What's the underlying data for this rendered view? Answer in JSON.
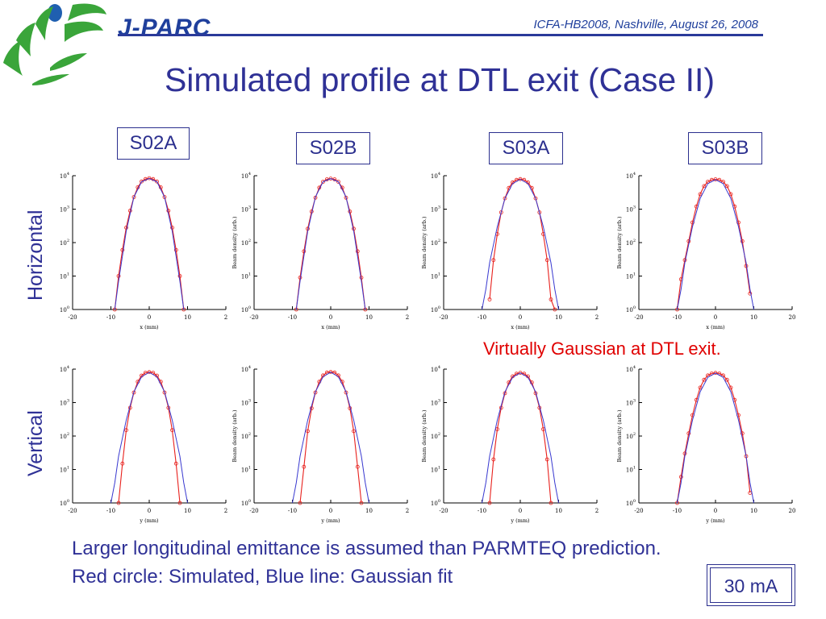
{
  "header": {
    "brand": "J-PARC",
    "conference": "ICFA-HB2008, Nashville, August 26, 2008"
  },
  "title": "Simulated profile at DTL exit (Case II)",
  "columns": [
    "S02A",
    "S02B",
    "S03A",
    "S03B"
  ],
  "rows": [
    "Horizontal",
    "Vertical"
  ],
  "annotation": "Virtually Gaussian at DTL exit.",
  "notes": {
    "line1": "Larger longitudinal emittance is assumed than PARMTEQ prediction.",
    "line2": "Red circle: Simulated, Blue line: Gaussian fit"
  },
  "current_label": "30 mA",
  "colors": {
    "title": "#2f3196",
    "simulated": "#e8201c",
    "gaussian_fit": "#3a3ad0",
    "annotation": "#e00000",
    "logo_green": "#3aa53a",
    "logo_blue": "#1f5fb0"
  },
  "chart_data": [
    {
      "type": "line",
      "row": "Horizontal",
      "column": "S02A",
      "xlabel": "x (mm)",
      "ylabel": "",
      "log_y": true,
      "xticks": [
        "-20",
        "-10",
        "0",
        "10",
        "2"
      ],
      "yticks": [
        "10^0",
        "10^1",
        "10^2",
        "10^3",
        "10^4"
      ],
      "xlim": [
        -20,
        20
      ],
      "ylim": [
        1,
        10000
      ],
      "series": [
        {
          "name": "Simulated",
          "marker": "circle",
          "x": [
            -9,
            -8,
            -7,
            -6,
            -5,
            -4,
            -3,
            -2,
            -1,
            0,
            1,
            2,
            3,
            4,
            5,
            6,
            7,
            8,
            9
          ],
          "y": [
            1,
            10,
            60,
            280,
            900,
            2300,
            4500,
            6700,
            7900,
            8400,
            7900,
            6700,
            4500,
            2300,
            900,
            280,
            60,
            10,
            1
          ]
        },
        {
          "name": "Gaussian fit",
          "x": [
            -9,
            -8,
            -6,
            -4,
            -2,
            0,
            2,
            4,
            6,
            8,
            9
          ],
          "y": [
            1,
            7,
            220,
            2300,
            6600,
            8300,
            6600,
            2300,
            220,
            7,
            1
          ]
        }
      ]
    },
    {
      "type": "line",
      "row": "Horizontal",
      "column": "S02B",
      "xlabel": "x (mm)",
      "ylabel": "Beam density (arb.)",
      "log_y": true,
      "xticks": [
        "-20",
        "-10",
        "0",
        "10",
        "2"
      ],
      "yticks": [
        "10^0",
        "10^1",
        "10^2",
        "10^3",
        "10^4"
      ],
      "xlim": [
        -20,
        20
      ],
      "ylim": [
        1,
        10000
      ],
      "series": [
        {
          "name": "Simulated",
          "marker": "circle",
          "x": [
            -9,
            -8,
            -7,
            -6,
            -5,
            -4,
            -3,
            -2,
            -1,
            0,
            1,
            2,
            3,
            4,
            5,
            6,
            7,
            8,
            9
          ],
          "y": [
            1,
            9,
            55,
            260,
            850,
            2200,
            4400,
            6600,
            7800,
            8200,
            7800,
            6600,
            4400,
            2200,
            850,
            260,
            55,
            9,
            1
          ]
        },
        {
          "name": "Gaussian fit",
          "x": [
            -9,
            -8,
            -6,
            -4,
            -2,
            0,
            2,
            4,
            6,
            8,
            9
          ],
          "y": [
            1,
            7,
            220,
            2300,
            6600,
            8200,
            6600,
            2300,
            220,
            7,
            1
          ]
        }
      ]
    },
    {
      "type": "line",
      "row": "Horizontal",
      "column": "S03A",
      "xlabel": "x (mm)",
      "ylabel": "Beam density (arb.)",
      "log_y": true,
      "xticks": [
        "-20",
        "-10",
        "0",
        "10",
        "2"
      ],
      "yticks": [
        "10^0",
        "10^1",
        "10^2",
        "10^3",
        "10^4"
      ],
      "xlim": [
        -20,
        20
      ],
      "ylim": [
        1,
        10000
      ],
      "series": [
        {
          "name": "Simulated",
          "marker": "circle",
          "x": [
            -8,
            -7,
            -6,
            -5,
            -4,
            -3,
            -2,
            -1,
            0,
            1,
            2,
            3,
            4,
            5,
            6,
            7,
            8,
            9
          ],
          "y": [
            2,
            30,
            180,
            800,
            2100,
            4300,
            6300,
            7500,
            7900,
            7500,
            6300,
            4300,
            2100,
            800,
            180,
            30,
            2,
            1
          ]
        },
        {
          "name": "Gaussian fit",
          "x": [
            -10,
            -9,
            -8,
            -6,
            -4,
            -2,
            0,
            2,
            4,
            6,
            8,
            9,
            10
          ],
          "y": [
            1,
            4,
            25,
            300,
            2100,
            5800,
            7800,
            5800,
            2100,
            300,
            25,
            4,
            1
          ]
        }
      ]
    },
    {
      "type": "line",
      "row": "Horizontal",
      "column": "S03B",
      "xlabel": "x (mm)",
      "ylabel": "Beam density (arb.)",
      "log_y": true,
      "xticks": [
        "-20",
        "-10",
        "0",
        "10",
        "20"
      ],
      "yticks": [
        "10^0",
        "10^1",
        "10^2",
        "10^3",
        "10^4"
      ],
      "xlim": [
        -20,
        20
      ],
      "ylim": [
        1,
        10000
      ],
      "series": [
        {
          "name": "Simulated",
          "marker": "circle",
          "x": [
            -10,
            -9,
            -8,
            -7,
            -6,
            -5,
            -4,
            -3,
            -2,
            -1,
            0,
            1,
            2,
            3,
            4,
            5,
            6,
            7,
            8,
            9
          ],
          "y": [
            1,
            8,
            30,
            110,
            400,
            1200,
            2800,
            4900,
            6600,
            7500,
            7800,
            7500,
            6600,
            4900,
            2800,
            1200,
            400,
            110,
            20,
            3
          ]
        },
        {
          "name": "Gaussian fit",
          "x": [
            -10,
            -9,
            -8,
            -6,
            -4,
            -2,
            0,
            2,
            4,
            6,
            8,
            9,
            10
          ],
          "y": [
            1,
            4,
            25,
            300,
            2100,
            5800,
            7600,
            5800,
            2100,
            300,
            25,
            4,
            1
          ]
        }
      ]
    },
    {
      "type": "line",
      "row": "Vertical",
      "column": "S02A",
      "xlabel": "y (mm)",
      "ylabel": "",
      "log_y": true,
      "xticks": [
        "-20",
        "-10",
        "0",
        "10",
        "2"
      ],
      "yticks": [
        "10^0",
        "10^1",
        "10^2",
        "10^3",
        "10^4"
      ],
      "xlim": [
        -20,
        20
      ],
      "ylim": [
        1,
        10000
      ],
      "series": [
        {
          "name": "Simulated",
          "marker": "circle",
          "x": [
            -8,
            -7,
            -6,
            -5,
            -4,
            -3,
            -2,
            -1,
            0,
            1,
            2,
            3,
            4,
            5,
            6,
            7,
            8
          ],
          "y": [
            1,
            15,
            150,
            700,
            2000,
            4200,
            6400,
            7800,
            8200,
            7800,
            6400,
            4200,
            2000,
            700,
            150,
            15,
            1
          ]
        },
        {
          "name": "Gaussian fit",
          "x": [
            -10,
            -9,
            -8,
            -6,
            -4,
            -2,
            0,
            2,
            4,
            6,
            8,
            9,
            10
          ],
          "y": [
            1,
            4,
            25,
            300,
            2100,
            5900,
            8000,
            5900,
            2100,
            300,
            25,
            4,
            1
          ]
        }
      ]
    },
    {
      "type": "line",
      "row": "Vertical",
      "column": "S02B",
      "xlabel": "y (mm)",
      "ylabel": "Beam density (arb.)",
      "log_y": true,
      "xticks": [
        "-20",
        "-10",
        "0",
        "10",
        "2"
      ],
      "yticks": [
        "10^0",
        "10^1",
        "10^2",
        "10^3",
        "10^4"
      ],
      "xlim": [
        -20,
        20
      ],
      "ylim": [
        1,
        10000
      ],
      "series": [
        {
          "name": "Simulated",
          "marker": "circle",
          "x": [
            -8,
            -7,
            -6,
            -5,
            -4,
            -3,
            -2,
            -1,
            0,
            1,
            2,
            3,
            4,
            5,
            6,
            7,
            8
          ],
          "y": [
            1,
            12,
            140,
            680,
            2000,
            4200,
            6500,
            7900,
            8300,
            7900,
            6500,
            4200,
            2000,
            680,
            140,
            12,
            1
          ]
        },
        {
          "name": "Gaussian fit",
          "x": [
            -10,
            -9,
            -8,
            -6,
            -4,
            -2,
            0,
            2,
            4,
            6,
            8,
            9,
            10
          ],
          "y": [
            1,
            4,
            25,
            300,
            2100,
            5900,
            8100,
            5900,
            2100,
            300,
            25,
            4,
            1
          ]
        }
      ]
    },
    {
      "type": "line",
      "row": "Vertical",
      "column": "S03A",
      "xlabel": "y (mm)",
      "ylabel": "Beam density (arb.)",
      "log_y": true,
      "xticks": [
        "-20",
        "-10",
        "0",
        "10",
        "2"
      ],
      "yticks": [
        "10^0",
        "10^1",
        "10^2",
        "10^3",
        "10^4"
      ],
      "xlim": [
        -20,
        20
      ],
      "ylim": [
        1,
        10000
      ],
      "series": [
        {
          "name": "Simulated",
          "marker": "circle",
          "x": [
            -8,
            -7,
            -6,
            -5,
            -4,
            -3,
            -2,
            -1,
            0,
            1,
            2,
            3,
            4,
            5,
            6,
            7,
            8
          ],
          "y": [
            1,
            20,
            160,
            700,
            1900,
            4000,
            6100,
            7300,
            7800,
            7300,
            6100,
            4000,
            1900,
            700,
            160,
            20,
            1
          ]
        },
        {
          "name": "Gaussian fit",
          "x": [
            -10,
            -9,
            -8,
            -6,
            -4,
            -2,
            0,
            2,
            4,
            6,
            8,
            9,
            10
          ],
          "y": [
            1,
            4,
            25,
            300,
            2100,
            5700,
            7700,
            5700,
            2100,
            300,
            25,
            4,
            1
          ]
        }
      ]
    },
    {
      "type": "line",
      "row": "Vertical",
      "column": "S03B",
      "xlabel": "y (mm)",
      "ylabel": "Beam density (arb.)",
      "log_y": true,
      "xticks": [
        "-20",
        "-10",
        "0",
        "10",
        "20"
      ],
      "yticks": [
        "10^0",
        "10^1",
        "10^2",
        "10^3",
        "10^4"
      ],
      "xlim": [
        -20,
        20
      ],
      "ylim": [
        1,
        10000
      ],
      "series": [
        {
          "name": "Simulated",
          "marker": "circle",
          "x": [
            -10,
            -9,
            -8,
            -7,
            -6,
            -5,
            -4,
            -3,
            -2,
            -1,
            0,
            1,
            2,
            3,
            4,
            5,
            6,
            7,
            8,
            9
          ],
          "y": [
            1,
            6,
            30,
            120,
            420,
            1200,
            2800,
            4800,
            6500,
            7400,
            7700,
            7400,
            6500,
            4800,
            2800,
            1200,
            420,
            120,
            25,
            2
          ]
        },
        {
          "name": "Gaussian fit",
          "x": [
            -10,
            -9,
            -8,
            -6,
            -4,
            -2,
            0,
            2,
            4,
            6,
            8,
            9,
            10
          ],
          "y": [
            1,
            4,
            25,
            300,
            2100,
            5700,
            7600,
            5700,
            2100,
            300,
            25,
            4,
            1
          ]
        }
      ]
    }
  ]
}
